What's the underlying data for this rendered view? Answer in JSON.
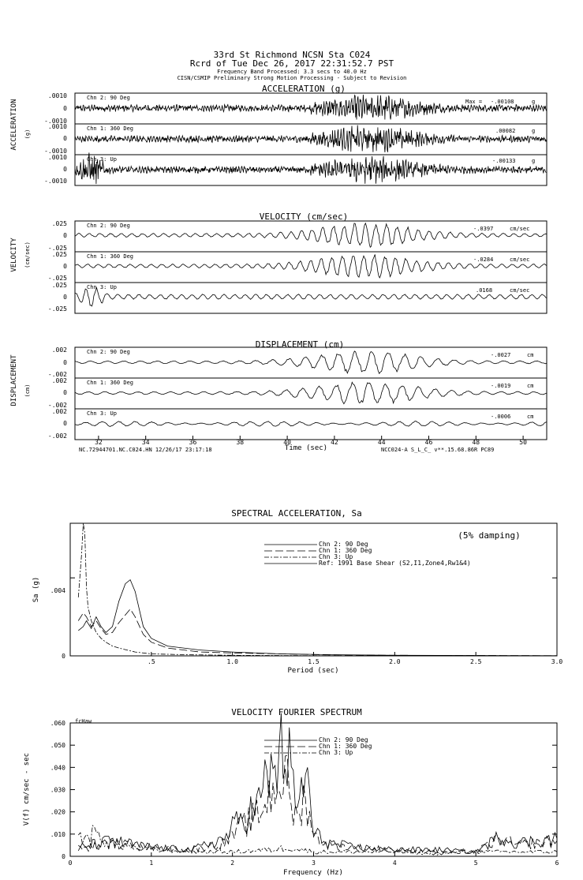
{
  "header": {
    "station": "33rd St Richmond    NCSN Sta C024",
    "record": "Rcrd of Tue Dec 26, 2017 22:31:52.7 PST",
    "band": "Frequency Band Processed: 3.3 secs to 40.0 Hz",
    "notice": "CISN/CSMIP Preliminary Strong Motion Processing - Subject to Revision"
  },
  "chart_data": [
    {
      "type": "line",
      "title": "ACCELERATION (g)",
      "ylabel": "ACCELERATION",
      "yunit": "(g)",
      "ylim": [
        -0.001,
        0.001
      ],
      "ytick_labels": [
        ".0010",
        "0",
        "-.0010"
      ],
      "max_prefix": "Max =",
      "traces": [
        {
          "name": "Chn 2: 90 Deg",
          "max": "-.00108",
          "unit": "g"
        },
        {
          "name": "Chn 1: 360 Deg",
          "max": ".00082",
          "unit": "g"
        },
        {
          "name": "Chn 3: Up",
          "max": "-.00133",
          "unit": "g"
        }
      ]
    },
    {
      "type": "line",
      "title": "VELOCITY (cm/sec)",
      "ylabel": "VELOCITY",
      "yunit": "(cm/sec)",
      "ylim": [
        -0.025,
        0.025
      ],
      "ytick_labels": [
        ".025",
        "0",
        "-.025"
      ],
      "traces": [
        {
          "name": "Chn 2: 90 Deg",
          "max": "-.0397",
          "unit": "cm/sec"
        },
        {
          "name": "Chn 1: 360 Deg",
          "max": "-.0284",
          "unit": "cm/sec"
        },
        {
          "name": "Chn 3: Up",
          "max": ".0168",
          "unit": "cm/sec"
        }
      ]
    },
    {
      "type": "line",
      "title": "DISPLACEMENT (cm)",
      "ylabel": "DISPLACEMENT",
      "yunit": "(cm)",
      "ylim": [
        -0.002,
        0.002
      ],
      "ytick_labels": [
        ".002",
        "0",
        "-.002"
      ],
      "xlabel": "Time (sec)",
      "xlim": [
        31,
        51
      ],
      "xticks": [
        32,
        34,
        36,
        38,
        40,
        42,
        44,
        46,
        48,
        50
      ],
      "footer_left": "NC.72944701.NC.C024.HN 12/26/17 23:17:18",
      "footer_right": "NCC024-A   S_L_C_   v**.15.68.86R PC89",
      "traces": [
        {
          "name": "Chn 2: 90 Deg",
          "max": "-.0027",
          "unit": "cm"
        },
        {
          "name": "Chn 1: 360 Deg",
          "max": "-.0019",
          "unit": "cm"
        },
        {
          "name": "Chn 3: Up",
          "max": "-.0006",
          "unit": "cm"
        }
      ]
    },
    {
      "type": "line",
      "title": "SPECTRAL ACCELERATION, Sa",
      "note": "(5% damping)",
      "ylabel": "Sa (g)",
      "xlabel": "Period (sec)",
      "xlim": [
        0,
        3.0
      ],
      "ylim": [
        0,
        0.0068
      ],
      "xtick_labels": [
        ".5",
        "1.0",
        "1.5",
        "2.0",
        "2.5",
        "3.0"
      ],
      "ytick_labels": [
        ".004",
        "0"
      ],
      "legend": [
        "Chn 2: 90 Deg",
        "Chn 1: 360 Deg",
        "Chn 3: Up",
        "Ref: 1991 Base Shear (S2,I1,Zone4,Rw1&4)"
      ],
      "series": [
        {
          "name": "Chn 2: 90 Deg",
          "x": [
            0.05,
            0.08,
            0.1,
            0.13,
            0.16,
            0.19,
            0.22,
            0.26,
            0.3,
            0.34,
            0.37,
            0.4,
            0.45,
            0.5,
            0.6,
            0.8,
            1.0,
            1.3,
            1.6,
            2.0,
            2.5,
            3.0
          ],
          "values": [
            0.0013,
            0.0015,
            0.0018,
            0.0014,
            0.002,
            0.0015,
            0.0012,
            0.0015,
            0.0028,
            0.0037,
            0.0039,
            0.0033,
            0.0015,
            0.0009,
            0.0005,
            0.0003,
            0.0002,
            0.0001,
            6e-05,
            3e-05,
            2e-05,
            1e-05
          ]
        },
        {
          "name": "Chn 1: 360 Deg",
          "x": [
            0.05,
            0.08,
            0.1,
            0.13,
            0.16,
            0.19,
            0.22,
            0.26,
            0.3,
            0.34,
            0.37,
            0.4,
            0.45,
            0.5,
            0.6,
            0.8,
            1.0,
            1.3,
            1.6,
            2.0,
            2.5,
            3.0
          ],
          "values": [
            0.0018,
            0.0022,
            0.002,
            0.0015,
            0.0018,
            0.0014,
            0.0011,
            0.0012,
            0.0017,
            0.0021,
            0.0024,
            0.002,
            0.0011,
            0.0007,
            0.0004,
            0.0002,
            0.00015,
            0.0001,
            5e-05,
            3e-05,
            2e-05,
            1e-05
          ]
        },
        {
          "name": "Chn 3: Up",
          "x": [
            0.05,
            0.07,
            0.08,
            0.09,
            0.1,
            0.11,
            0.13,
            0.16,
            0.19,
            0.22,
            0.26,
            0.3,
            0.35,
            0.4,
            0.5,
            0.7,
            1.0,
            1.5,
            2.0,
            3.0
          ],
          "values": [
            0.003,
            0.0052,
            0.0068,
            0.0063,
            0.0035,
            0.0025,
            0.0018,
            0.0012,
            0.0009,
            0.0007,
            0.0005,
            0.0004,
            0.0003,
            0.0002,
            0.0001,
            6e-05,
            3e-05,
            1e-05,
            5e-06,
            0.0
          ]
        },
        {
          "name": "Ref: 1991 Base Shear (S2,I1,Zone4,Rw1&4)",
          "x": [
            0.0,
            3.0
          ],
          "values": [
            0.0,
            0.0
          ]
        }
      ]
    },
    {
      "type": "line",
      "title": "VELOCITY FOURIER SPECTRUM",
      "label_tl": "fcHaw",
      "ylabel": "V(f)  cm/sec - sec",
      "xlabel": "Frequency (Hz)",
      "xlim": [
        0,
        6
      ],
      "ylim": [
        0,
        0.06
      ],
      "xtick_labels": [
        "0",
        "1",
        "2",
        "3",
        "4",
        "5",
        "6"
      ],
      "ytick_labels": [
        ".060",
        ".050",
        ".040",
        ".030",
        ".020",
        ".010",
        "0"
      ],
      "legend": [
        "Chn 2: 90 Deg",
        "Chn 1: 360 Deg",
        "Chn 3: Up"
      ],
      "series": [
        {
          "name": "Chn 2: 90 Deg",
          "x": [
            0.1,
            0.5,
            1.0,
            1.5,
            1.9,
            2.1,
            2.3,
            2.4,
            2.5,
            2.6,
            2.65,
            2.7,
            2.75,
            2.8,
            2.9,
            2.95,
            3.0,
            3.2,
            3.5,
            4.0,
            4.5,
            5.0,
            5.3,
            5.5,
            6.0
          ],
          "values": [
            0.004,
            0.007,
            0.004,
            0.003,
            0.008,
            0.017,
            0.022,
            0.032,
            0.038,
            0.046,
            0.048,
            0.042,
            0.028,
            0.02,
            0.04,
            0.025,
            0.01,
            0.006,
            0.004,
            0.003,
            0.003,
            0.002,
            0.009,
            0.006,
            0.008
          ]
        },
        {
          "name": "Chn 1: 360 Deg",
          "x": [
            0.1,
            0.5,
            1.0,
            1.5,
            1.9,
            2.1,
            2.3,
            2.4,
            2.5,
            2.6,
            2.65,
            2.7,
            2.75,
            2.8,
            2.9,
            2.95,
            3.0,
            3.2,
            3.5,
            4.0,
            4.5,
            5.0,
            5.3,
            5.5,
            6.0
          ],
          "values": [
            0.003,
            0.006,
            0.004,
            0.003,
            0.006,
            0.013,
            0.018,
            0.024,
            0.03,
            0.036,
            0.034,
            0.03,
            0.02,
            0.016,
            0.028,
            0.02,
            0.009,
            0.005,
            0.004,
            0.003,
            0.002,
            0.002,
            0.008,
            0.005,
            0.007
          ]
        },
        {
          "name": "Chn 3: Up",
          "x": [
            0.1,
            0.3,
            0.5,
            0.8,
            1.0,
            1.5,
            2.0,
            2.5,
            2.7,
            3.0,
            3.5,
            4.0,
            4.5,
            5.0,
            5.5,
            6.0
          ],
          "values": [
            0.008,
            0.01,
            0.006,
            0.004,
            0.003,
            0.002,
            0.002,
            0.003,
            0.004,
            0.002,
            0.002,
            0.002,
            0.001,
            0.002,
            0.002,
            0.002
          ]
        }
      ]
    }
  ]
}
